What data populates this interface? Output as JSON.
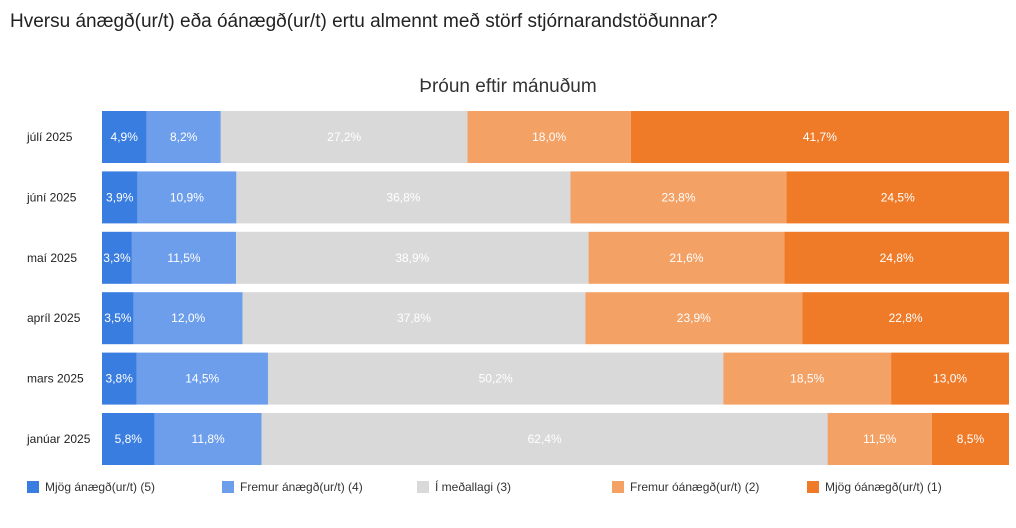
{
  "question": "Hversu ánægð(ur/t) eða óánægð(ur/t) ertu almennt með störf stjórnarandstöðunnar?",
  "chart_data": {
    "type": "bar",
    "orientation": "horizontal",
    "stacked": "100%",
    "title": "Þróun eftir mánuðum",
    "categories": [
      "júlí 2025",
      "júní 2025",
      "maí 2025",
      "apríl 2025",
      "mars 2025",
      "janúar 2025"
    ],
    "legend_position": "bottom",
    "series": [
      {
        "name": "Mjög ánægð(ur/t) (5)",
        "color": "#3a7de0",
        "label_color": "#ffffff",
        "values": [
          4.9,
          3.9,
          3.3,
          3.5,
          3.8,
          5.8
        ],
        "labels": [
          "4,9%",
          "3,9%",
          "3,3%",
          "3,5%",
          "3,8%",
          "5,8%"
        ]
      },
      {
        "name": "Fremur ánægð(ur/t) (4)",
        "color": "#6d9eeb",
        "label_color": "#ffffff",
        "values": [
          8.2,
          10.9,
          11.5,
          12.0,
          14.5,
          11.8
        ],
        "labels": [
          "8,2%",
          "10,9%",
          "11,5%",
          "12,0%",
          "14,5%",
          "11,8%"
        ]
      },
      {
        "name": "Í meðallagi (3)",
        "color": "#d9d9d9",
        "label_color": "#ffffff",
        "values": [
          27.2,
          36.8,
          38.9,
          37.8,
          50.2,
          62.4
        ],
        "labels": [
          "27,2%",
          "36,8%",
          "38,9%",
          "37,8%",
          "50,2%",
          "62,4%"
        ]
      },
      {
        "name": "Fremur óánægð(ur/t) (2)",
        "color": "#f3a165",
        "label_color": "#ffffff",
        "values": [
          18.0,
          23.8,
          21.6,
          23.9,
          18.5,
          11.5
        ],
        "labels": [
          "18,0%",
          "23,8%",
          "21,6%",
          "23,9%",
          "18,5%",
          "11,5%"
        ]
      },
      {
        "name": "Mjög óánægð(ur/t) (1)",
        "color": "#ef7b28",
        "label_color": "#ffffff",
        "values": [
          41.7,
          24.5,
          24.8,
          22.8,
          13.0,
          8.5
        ],
        "labels": [
          "41,7%",
          "24,5%",
          "24,8%",
          "22,8%",
          "13,0%",
          "8,5%"
        ]
      }
    ]
  }
}
